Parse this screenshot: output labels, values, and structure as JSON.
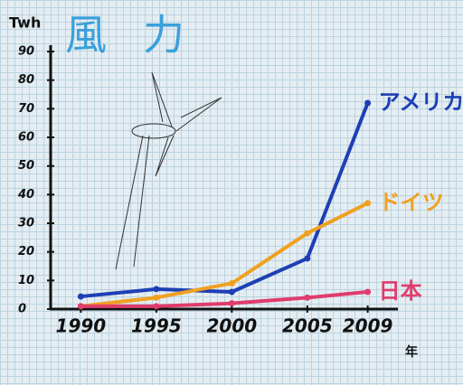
{
  "chart_data": {
    "type": "line",
    "title": "風力",
    "y_label": "Twh",
    "x_label": "年",
    "x": [
      1990,
      1995,
      2000,
      2005,
      2009
    ],
    "series": [
      {
        "name": "アメリカ",
        "color": "#1e3fb4",
        "values": [
          4.4,
          7,
          6,
          17.7,
          72
        ]
      },
      {
        "name": "ドイツ",
        "color": "#f0a020",
        "values": [
          1,
          4,
          9,
          26.5,
          37
        ]
      },
      {
        "name": "日本",
        "color": "#e03c6c",
        "values": [
          1,
          1,
          2,
          4,
          6
        ]
      }
    ],
    "xlim": [
      1988,
      2011
    ],
    "ylim": [
      0,
      90
    ],
    "xticks": [
      1990,
      1995,
      2000,
      2005,
      2009
    ],
    "yticks": [
      0,
      10,
      20,
      30,
      40,
      50,
      60,
      70,
      80,
      90
    ],
    "grid": false
  }
}
